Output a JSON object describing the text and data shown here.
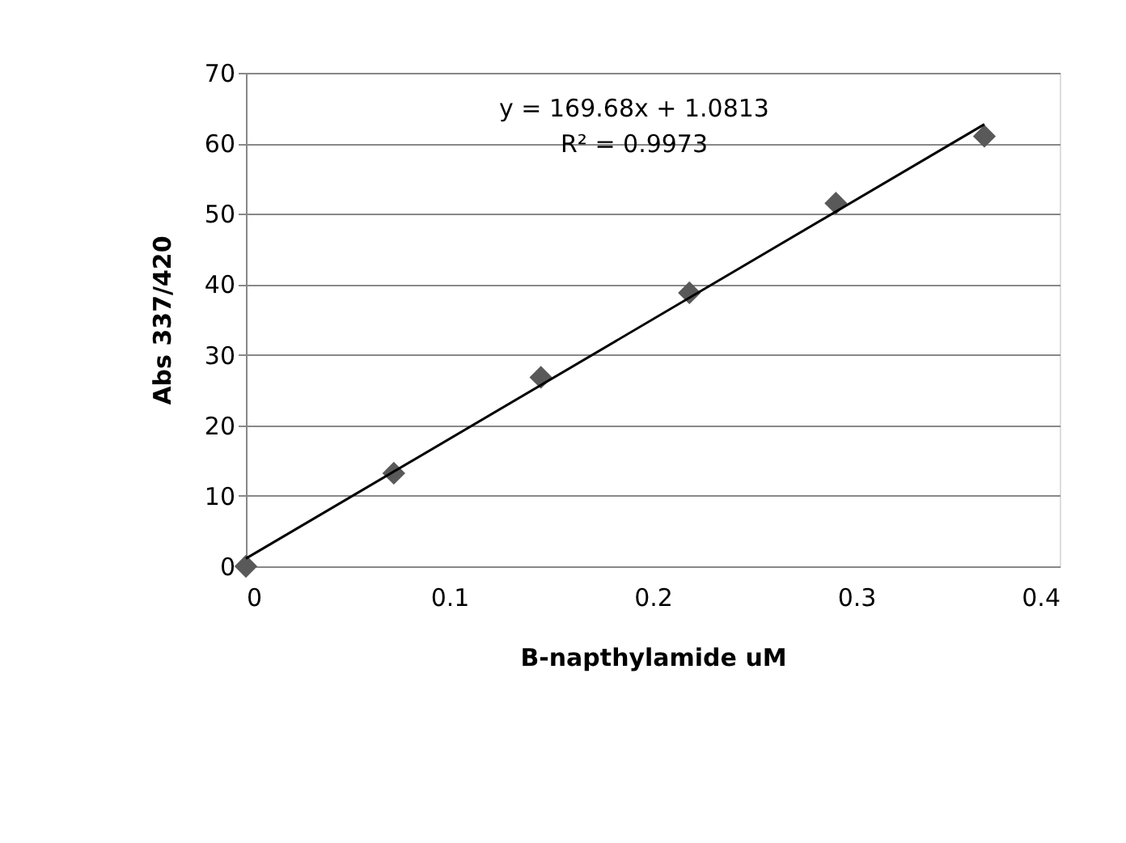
{
  "chart_data": {
    "type": "scatter",
    "xlabel": "B-napthylamide uM",
    "ylabel": "Abs 337/420",
    "annotations": [
      "y = 169.68x + 1.0813",
      "R² = 0.9973"
    ],
    "xlim": [
      0,
      0.4
    ],
    "xticks": [
      0,
      0.1,
      0.2,
      0.3,
      0.4
    ],
    "ylim": [
      0,
      70
    ],
    "yticks": [
      0,
      10,
      20,
      30,
      40,
      50,
      60,
      70
    ],
    "grid": "y",
    "series": [
      {
        "color": "#595959",
        "marker": "diamond",
        "x": [
          0,
          0.0727,
          0.145,
          0.218,
          0.29,
          0.363
        ],
        "values": [
          0,
          13.2,
          26.8,
          38.8,
          51.5,
          61
        ]
      },
      {
        "type": "line",
        "color": "#000000",
        "line_style": "solid",
        "marker": "none",
        "x": [
          0,
          0.363
        ],
        "values": [
          1.1,
          62.7
        ]
      }
    ]
  }
}
